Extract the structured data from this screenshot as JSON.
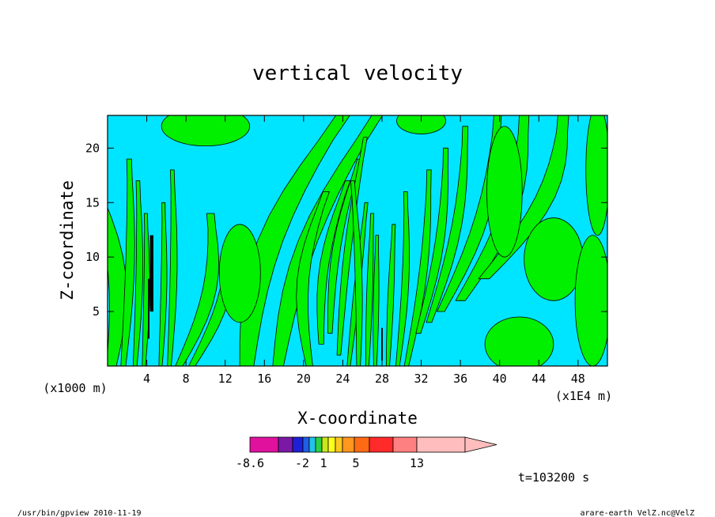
{
  "chart_data": {
    "type": "heatmap",
    "title": "vertical velocity",
    "xlabel": "X-coordinate",
    "ylabel": "Z-coordinate",
    "x_unit_left": "(x1000 m)",
    "x_unit_right": "(x1E4 m)",
    "xticks": [
      4,
      8,
      12,
      16,
      20,
      24,
      28,
      32,
      36,
      40,
      44,
      48
    ],
    "yticks": [
      5,
      10,
      15,
      20
    ],
    "xlim": [
      0,
      51
    ],
    "ylim": [
      0,
      23
    ],
    "colorbar": {
      "labels": [
        "-8.6",
        "-2",
        "1",
        "5",
        "13"
      ],
      "colors": [
        "#e0119c",
        "#7a19a6",
        "#1f1fd6",
        "#1f5fe6",
        "#22c3e6",
        "#2ad04a",
        "#c8e61e",
        "#ffff1e",
        "#ffc81e",
        "#ff961e",
        "#ff6a14",
        "#ff2a2a",
        "#ff8080",
        "#ffbdbd",
        "#ffbdbd"
      ]
    },
    "fill_colors": {
      "negative": "#00e5ff",
      "positive": "#00f000",
      "strong": "#000000"
    },
    "time_label": "t=103200 s"
  },
  "footer": {
    "program": "/usr/bin/gpview   2010-11-19",
    "source": "arare-earth_VelZ.nc@VelZ"
  }
}
